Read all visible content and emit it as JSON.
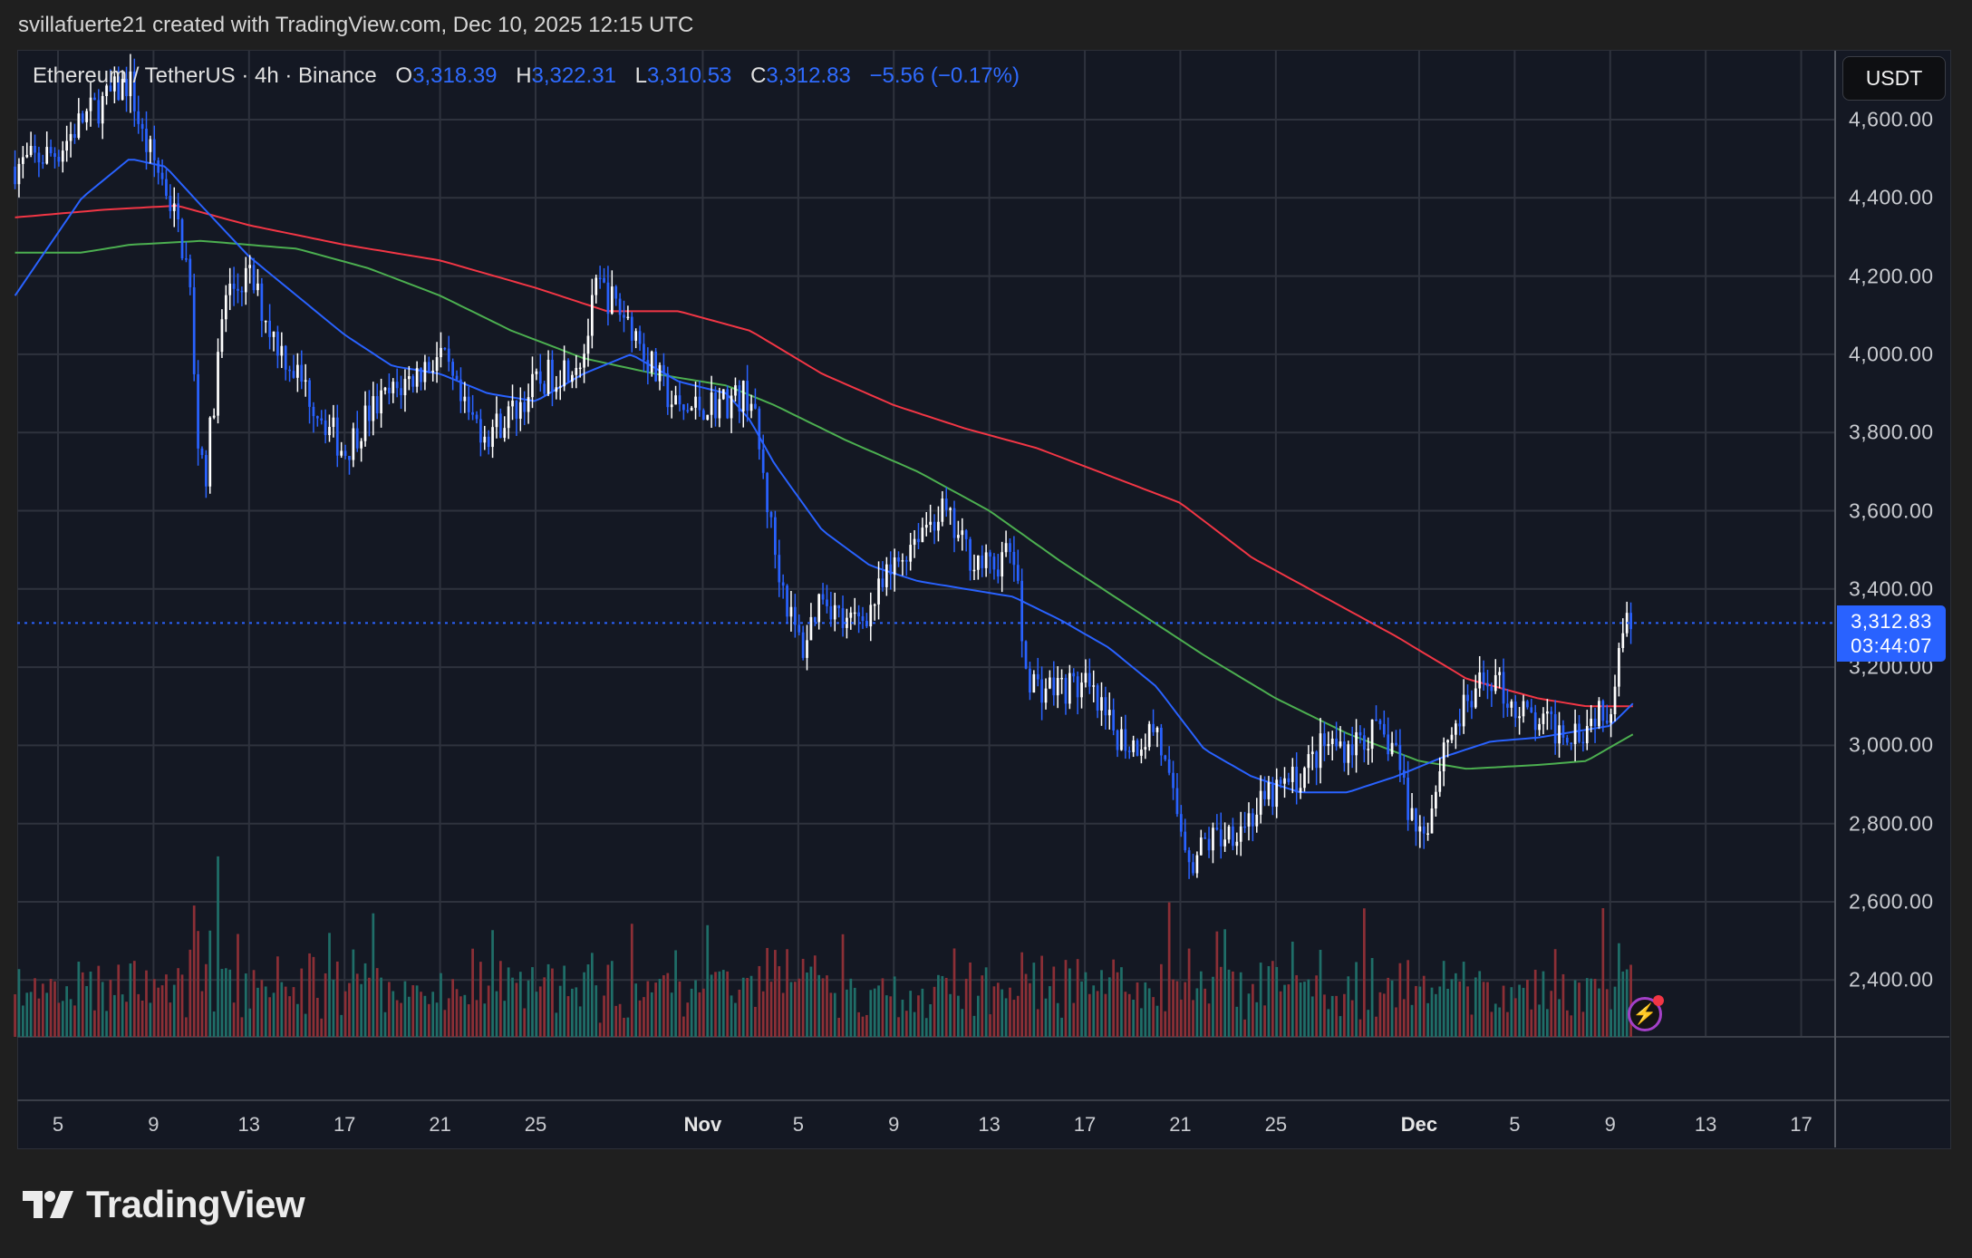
{
  "credit": "svillafuerte21 created with TradingView.com, Dec 10, 2025 12:15 UTC",
  "legend": {
    "symbol": "Ethereum / TetherUS · 4h · Binance",
    "o_label": "O",
    "o": "3,318.39",
    "h_label": "H",
    "h": "3,322.31",
    "l_label": "L",
    "l": "3,310.53",
    "c_label": "C",
    "c": "3,312.83",
    "change": "−5.56 (−0.17%)"
  },
  "currency_button": "USDT",
  "last_price": {
    "price": "3,312.83",
    "countdown": "03:44:07"
  },
  "logo_text": "TradingView",
  "colors": {
    "up": "#ffffff",
    "down": "#2962ff",
    "ma_red": "#f23645",
    "ma_green": "#4caf50",
    "ma_blue": "#2962ff",
    "vol_up": "#1f6e68",
    "vol_down": "#8c2f36"
  },
  "chart_data": {
    "type": "candlestick",
    "title": "Ethereum / TetherUS · 4h · Binance",
    "y_ticks": [
      "4,600.00",
      "4,400.00",
      "4,200.00",
      "4,000.00",
      "3,800.00",
      "3,600.00",
      "3,400.00",
      "3,200.00",
      "3,000.00",
      "2,800.00",
      "2,600.00",
      "2,400.00"
    ],
    "y_tick_values": [
      4600,
      4400,
      4200,
      4000,
      3800,
      3600,
      3400,
      3200,
      3000,
      2800,
      2600,
      2400
    ],
    "x_ticks": [
      "5",
      "9",
      "13",
      "17",
      "21",
      "25",
      "Nov",
      "5",
      "9",
      "13",
      "17",
      "21",
      "25",
      "Dec",
      "5",
      "9",
      "13",
      "17"
    ],
    "x_tick_days": [
      0,
      4,
      8,
      12,
      16,
      20,
      27,
      31,
      35,
      39,
      43,
      47,
      51,
      57,
      61,
      65,
      69,
      73
    ],
    "x_tick_bold": [
      false,
      false,
      false,
      false,
      false,
      false,
      true,
      false,
      false,
      false,
      false,
      false,
      false,
      true,
      false,
      false,
      false,
      false
    ],
    "x_unit": "days since Oct 5, 2025",
    "close_path": [
      [
        -1.8,
        4480
      ],
      [
        0,
        4520
      ],
      [
        1,
        4600
      ],
      [
        2,
        4650
      ],
      [
        3,
        4700
      ],
      [
        3.5,
        4560
      ],
      [
        4.5,
        4430
      ],
      [
        5,
        4330
      ],
      [
        5.5,
        4200
      ],
      [
        5.8,
        3800
      ],
      [
        6.2,
        3700
      ],
      [
        7,
        4150
      ],
      [
        8,
        4200
      ],
      [
        9,
        4050
      ],
      [
        10,
        3950
      ],
      [
        11,
        3850
      ],
      [
        12,
        3750
      ],
      [
        13,
        3850
      ],
      [
        14,
        3900
      ],
      [
        15,
        3950
      ],
      [
        16,
        4000
      ],
      [
        17,
        3850
      ],
      [
        18,
        3800
      ],
      [
        19,
        3850
      ],
      [
        20,
        3920
      ],
      [
        21,
        3960
      ],
      [
        22,
        4000
      ],
      [
        22.6,
        4180
      ],
      [
        23,
        4150
      ],
      [
        24,
        4080
      ],
      [
        25,
        3950
      ],
      [
        26,
        3850
      ],
      [
        27,
        3870
      ],
      [
        28,
        3880
      ],
      [
        29,
        3900
      ],
      [
        29.5,
        3700
      ],
      [
        30,
        3500
      ],
      [
        30.8,
        3300
      ],
      [
        31.2,
        3250
      ],
      [
        32,
        3400
      ],
      [
        33,
        3300
      ],
      [
        34,
        3350
      ],
      [
        35,
        3450
      ],
      [
        36,
        3550
      ],
      [
        37,
        3600
      ],
      [
        38,
        3500
      ],
      [
        39,
        3450
      ],
      [
        40,
        3500
      ],
      [
        40.5,
        3200
      ],
      [
        41,
        3150
      ],
      [
        42,
        3150
      ],
      [
        43,
        3150
      ],
      [
        44,
        3050
      ],
      [
        45,
        3000
      ],
      [
        46,
        3050
      ],
      [
        46.5,
        2900
      ],
      [
        47,
        2800
      ],
      [
        47.5,
        2700
      ],
      [
        48,
        2750
      ],
      [
        49,
        2780
      ],
      [
        50,
        2820
      ],
      [
        51,
        2880
      ],
      [
        52,
        2920
      ],
      [
        53,
        3000
      ],
      [
        54,
        3000
      ],
      [
        55,
        3030
      ],
      [
        56,
        3000
      ],
      [
        56.5,
        2850
      ],
      [
        57,
        2780
      ],
      [
        57.5,
        2830
      ],
      [
        58,
        3000
      ],
      [
        59,
        3100
      ],
      [
        60,
        3180
      ],
      [
        61,
        3100
      ],
      [
        62,
        3050
      ],
      [
        63,
        3040
      ],
      [
        64,
        3050
      ],
      [
        64.5,
        3100
      ],
      [
        65,
        3100
      ],
      [
        65.5,
        3320
      ],
      [
        66,
        3310
      ]
    ],
    "ma_blue_path": [
      [
        -1.8,
        4150
      ],
      [
        1,
        4400
      ],
      [
        3,
        4500
      ],
      [
        4.5,
        4480
      ],
      [
        6,
        4380
      ],
      [
        8,
        4250
      ],
      [
        10,
        4150
      ],
      [
        12,
        4050
      ],
      [
        14,
        3970
      ],
      [
        16,
        3950
      ],
      [
        18,
        3900
      ],
      [
        20,
        3880
      ],
      [
        22,
        3950
      ],
      [
        24,
        4000
      ],
      [
        26,
        3930
      ],
      [
        28,
        3900
      ],
      [
        29,
        3830
      ],
      [
        30,
        3720
      ],
      [
        32,
        3550
      ],
      [
        34,
        3460
      ],
      [
        36,
        3420
      ],
      [
        38,
        3400
      ],
      [
        40,
        3380
      ],
      [
        42,
        3320
      ],
      [
        44,
        3250
      ],
      [
        46,
        3150
      ],
      [
        48,
        2990
      ],
      [
        50,
        2920
      ],
      [
        52,
        2880
      ],
      [
        54,
        2880
      ],
      [
        56,
        2920
      ],
      [
        58,
        2970
      ],
      [
        60,
        3010
      ],
      [
        62,
        3020
      ],
      [
        64,
        3040
      ],
      [
        65,
        3050
      ],
      [
        66,
        3110
      ]
    ],
    "ma_green_path": [
      [
        -1.8,
        4260
      ],
      [
        1,
        4260
      ],
      [
        3,
        4280
      ],
      [
        6,
        4290
      ],
      [
        8,
        4280
      ],
      [
        10,
        4270
      ],
      [
        13,
        4220
      ],
      [
        16,
        4150
      ],
      [
        19,
        4060
      ],
      [
        22,
        3990
      ],
      [
        25,
        3950
      ],
      [
        28,
        3920
      ],
      [
        30,
        3870
      ],
      [
        33,
        3780
      ],
      [
        36,
        3700
      ],
      [
        39,
        3600
      ],
      [
        42,
        3470
      ],
      [
        45,
        3350
      ],
      [
        48,
        3230
      ],
      [
        51,
        3120
      ],
      [
        54,
        3030
      ],
      [
        57,
        2960
      ],
      [
        59,
        2940
      ],
      [
        62,
        2950
      ],
      [
        64,
        2960
      ],
      [
        66,
        3030
      ]
    ],
    "ma_red_path": [
      [
        -1.8,
        4350
      ],
      [
        2,
        4370
      ],
      [
        5,
        4380
      ],
      [
        8,
        4330
      ],
      [
        12,
        4280
      ],
      [
        16,
        4240
      ],
      [
        20,
        4170
      ],
      [
        23,
        4110
      ],
      [
        26,
        4110
      ],
      [
        29,
        4060
      ],
      [
        32,
        3950
      ],
      [
        35,
        3870
      ],
      [
        38,
        3810
      ],
      [
        41,
        3760
      ],
      [
        44,
        3690
      ],
      [
        47,
        3620
      ],
      [
        50,
        3480
      ],
      [
        53,
        3380
      ],
      [
        56,
        3280
      ],
      [
        59,
        3170
      ],
      [
        62,
        3120
      ],
      [
        64,
        3100
      ],
      [
        66,
        3100
      ]
    ],
    "last_price": 3312.83,
    "ylim": [
      2250,
      4780
    ]
  }
}
